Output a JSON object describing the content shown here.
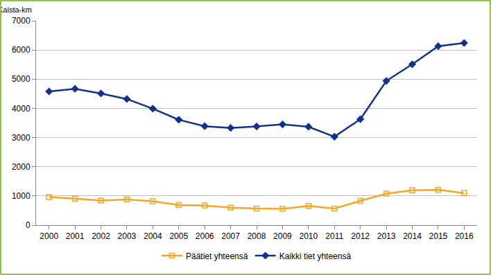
{
  "chart_data": {
    "type": "line",
    "y_label": "Kaista-km",
    "categories": [
      "2000",
      "2001",
      "2002",
      "2003",
      "2004",
      "2005",
      "2006",
      "2007",
      "2008",
      "2009",
      "2010",
      "2011",
      "2012",
      "2013",
      "2014",
      "2015",
      "2016"
    ],
    "series": [
      {
        "name": "Päätiet yhteensä",
        "color": "#f5a623",
        "marker": "square-open",
        "values": [
          960,
          910,
          840,
          880,
          820,
          690,
          670,
          600,
          570,
          560,
          660,
          570,
          830,
          1080,
          1190,
          1210,
          1100
        ]
      },
      {
        "name": "Kaikki tiet yhteensä",
        "color": "#13308c",
        "marker": "diamond",
        "values": [
          4580,
          4670,
          4510,
          4320,
          3990,
          3610,
          3390,
          3330,
          3380,
          3450,
          3370,
          3030,
          3630,
          4940,
          5510,
          6130,
          6240
        ]
      }
    ],
    "ylim": [
      0,
      7000
    ],
    "yticks": [
      0,
      1000,
      2000,
      3000,
      4000,
      5000,
      6000,
      7000
    ],
    "grid": true,
    "legend": "bottom"
  }
}
